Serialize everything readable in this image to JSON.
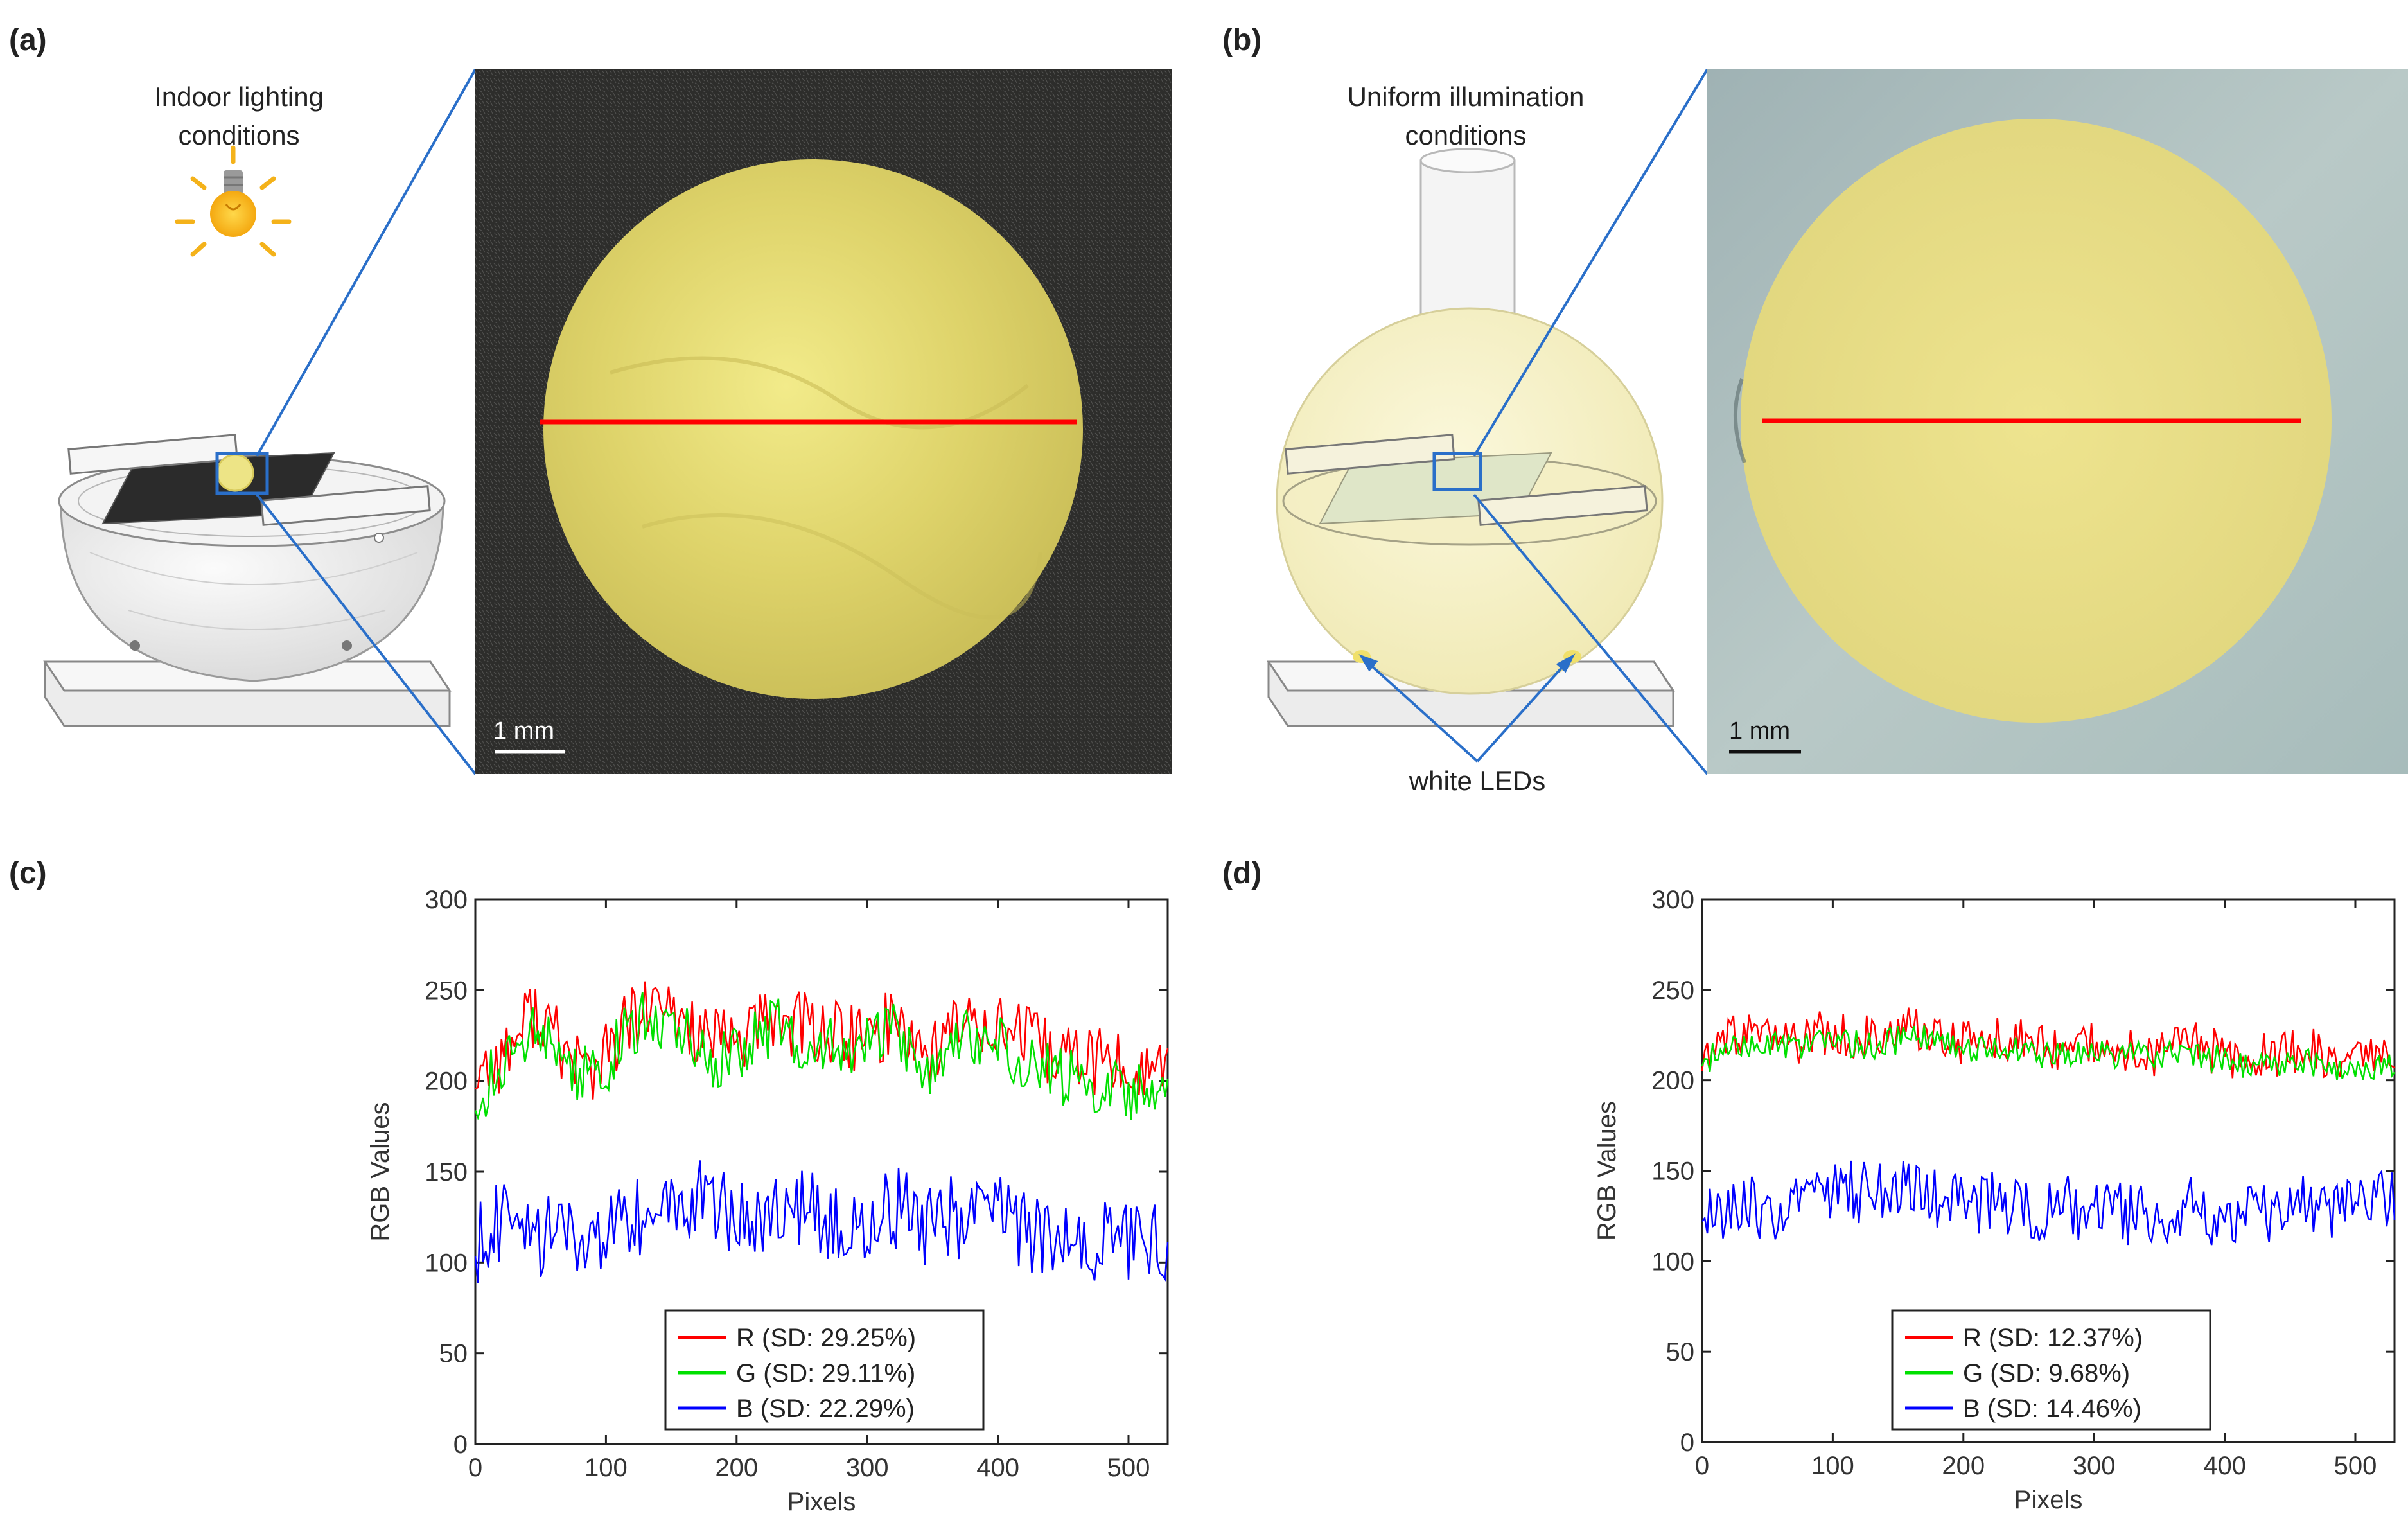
{
  "panels": {
    "a": {
      "label": "(a)",
      "caption_line1": "Indoor lighting",
      "caption_line2": "conditions",
      "scale_bar": "1 mm"
    },
    "b": {
      "label": "(b)",
      "caption_line1": "Uniform illumination",
      "caption_line2": "conditions",
      "scale_bar": "1 mm",
      "led_label": "white LEDs"
    },
    "c": {
      "label": "(c)"
    },
    "d": {
      "label": "(d)"
    }
  },
  "colors": {
    "r": "#ff0000",
    "g": "#00e000",
    "b": "#0000ff",
    "callout": "#2a6fc9"
  },
  "chart_data": [
    {
      "type": "line",
      "panel": "(c)",
      "xlabel": "Pixels",
      "ylabel": "RGB Values",
      "xlim": [
        0,
        530
      ],
      "ylim": [
        0,
        300
      ],
      "xticks": [
        0,
        100,
        200,
        300,
        400,
        500
      ],
      "yticks": [
        0,
        50,
        100,
        150,
        200,
        250,
        300
      ],
      "legend_position": "bottom-center",
      "series": [
        {
          "name": "R (SD: 29.25%)",
          "key": "r",
          "base": [
            205,
            215,
            240,
            215,
            205,
            230,
            240,
            232,
            220,
            225,
            235,
            230,
            225,
            222,
            235,
            215,
            230,
            235,
            225,
            215,
            213,
            210,
            205,
            210
          ],
          "amp": 20
        },
        {
          "name": "G (SD: 29.11%)",
          "key": "g",
          "base": [
            190,
            210,
            232,
            208,
            200,
            228,
            236,
            226,
            210,
            220,
            230,
            222,
            218,
            218,
            228,
            208,
            224,
            226,
            214,
            204,
            200,
            196,
            192,
            198
          ],
          "amp": 17
        },
        {
          "name": "B (SD: 22.29%)",
          "key": "b",
          "base": [
            110,
            125,
            115,
            110,
            105,
            120,
            125,
            135,
            130,
            128,
            125,
            130,
            120,
            122,
            130,
            118,
            125,
            128,
            120,
            112,
            108,
            110,
            112,
            112
          ],
          "amp": 24
        }
      ]
    },
    {
      "type": "line",
      "panel": "(d)",
      "xlabel": "Pixels",
      "ylabel": "RGB Values",
      "xlim": [
        0,
        530
      ],
      "ylim": [
        0,
        300
      ],
      "xticks": [
        0,
        100,
        200,
        300,
        400,
        500
      ],
      "yticks": [
        0,
        50,
        100,
        150,
        200,
        250,
        300
      ],
      "legend_position": "bottom-center",
      "series": [
        {
          "name": "R (SD: 12.37%)",
          "key": "r",
          "base": [
            210,
            225,
            222,
            220,
            226,
            224,
            222,
            228,
            224,
            220,
            225,
            218,
            218,
            220,
            218,
            215,
            222,
            216,
            212,
            214,
            218,
            210,
            212,
            210
          ],
          "amp": 13
        },
        {
          "name": "G (SD: 9.68%)",
          "key": "g",
          "base": [
            210,
            218,
            220,
            218,
            222,
            220,
            220,
            224,
            220,
            218,
            220,
            214,
            214,
            216,
            214,
            212,
            216,
            212,
            208,
            210,
            212,
            206,
            208,
            208
          ],
          "amp": 8
        },
        {
          "name": "B (SD: 14.46%)",
          "key": "b",
          "base": [
            125,
            130,
            128,
            130,
            135,
            138,
            140,
            138,
            135,
            130,
            132,
            128,
            130,
            128,
            126,
            125,
            130,
            125,
            122,
            128,
            135,
            130,
            132,
            135
          ],
          "amp": 18
        }
      ]
    }
  ]
}
